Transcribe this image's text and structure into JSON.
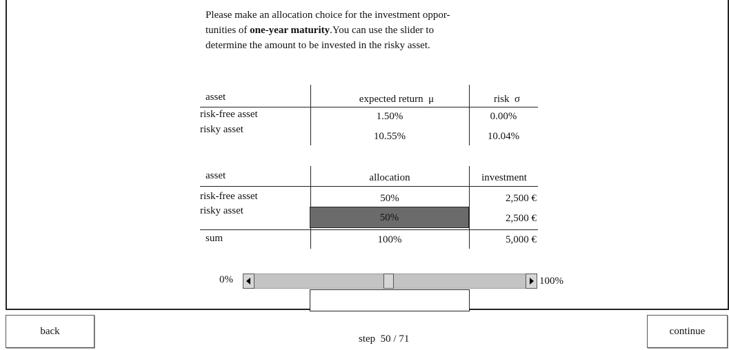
{
  "instruction": {
    "line1": "Please make an allocation choice for the investment oppor-",
    "line2_start": "tunities of",
    "line2_bold": "one-year maturity",
    "line2_end": ".You can use the slider to",
    "line3": "determine the amount to be invested in the risky asset."
  },
  "returns_table": {
    "header": [
      "asset",
      "expected return  μ",
      "risk  σ"
    ],
    "rows": [
      [
        "risk-free asset",
        "1.50%",
        "0.00%"
      ],
      [
        "risky asset",
        "10.55%",
        "10.04%"
      ]
    ]
  },
  "allocation_table": {
    "header": [
      "asset",
      "allocation",
      "investment"
    ],
    "rows": [
      [
        "risk-free asset",
        "50%",
        "2,500 €"
      ],
      [
        "risky asset",
        "50%",
        "2,500 €"
      ],
      [
        "sum",
        "100%",
        "5,000 €"
      ]
    ]
  },
  "slider": {
    "min_label": "0%",
    "max_label": "100%"
  },
  "buttons": {
    "back": "back",
    "continue": "continue"
  },
  "step": {
    "label": "step",
    "value": "50 / 71"
  }
}
